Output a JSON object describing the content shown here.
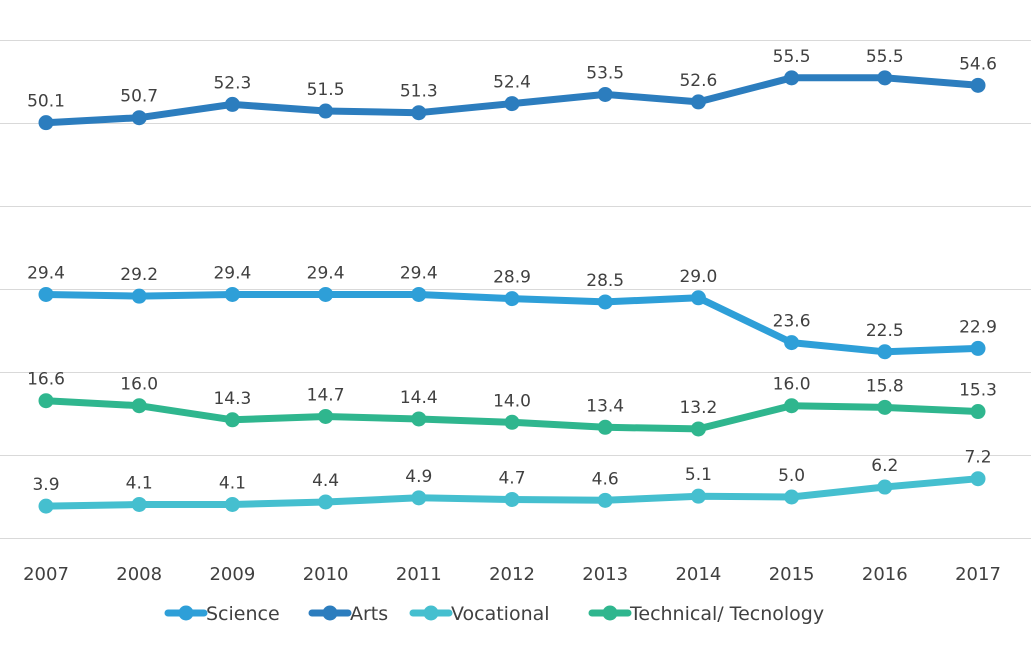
{
  "chart_data": {
    "type": "line",
    "title": "",
    "xlabel": "",
    "ylabel": "",
    "ylim": [
      0,
      60
    ],
    "grid": true,
    "legend_position": "bottom",
    "categories": [
      "2007",
      "2008",
      "2009",
      "2010",
      "2011",
      "2012",
      "2013",
      "2014",
      "2015",
      "2016",
      "2017"
    ],
    "series": [
      {
        "name": "Science",
        "color": "#2E9FD8",
        "values": [
          29.4,
          29.2,
          29.4,
          29.4,
          29.4,
          28.9,
          28.5,
          29.0,
          23.6,
          22.5,
          22.9
        ],
        "labels": [
          "29.4",
          "29.2",
          "29.4",
          "29.4",
          "29.4",
          "28.9",
          "28.5",
          "29.0",
          "23.6",
          "22.5",
          "22.9"
        ]
      },
      {
        "name": "Arts",
        "color": "#2C7DBE",
        "values": [
          50.1,
          50.7,
          52.3,
          51.5,
          51.3,
          52.4,
          53.5,
          52.6,
          55.5,
          55.5,
          54.6
        ],
        "labels": [
          "50.1",
          "50.7",
          "52.3",
          "51.5",
          "51.3",
          "52.4",
          "53.5",
          "52.6",
          "55.5",
          "55.5",
          "54.6"
        ]
      },
      {
        "name": "Vocational",
        "color": "#45BFCF",
        "values": [
          3.9,
          4.1,
          4.1,
          4.4,
          4.9,
          4.7,
          4.6,
          5.1,
          5.0,
          6.2,
          7.2
        ],
        "labels": [
          "3.9",
          "4.1",
          "4.1",
          "4.4",
          "4.9",
          "4.7",
          "4.6",
          "5.1",
          "5.0",
          "6.2",
          "7.2"
        ]
      },
      {
        "name": "Technical/ Tecnology",
        "color": "#2FB68E",
        "values": [
          16.6,
          16.0,
          14.3,
          14.7,
          14.4,
          14.0,
          13.4,
          13.2,
          16.0,
          15.8,
          15.3
        ],
        "labels": [
          "16.6",
          "16.0",
          "14.3",
          "14.7",
          "14.4",
          "14.0",
          "13.4",
          "13.2",
          "16.0",
          "15.8",
          "15.3"
        ]
      }
    ]
  }
}
